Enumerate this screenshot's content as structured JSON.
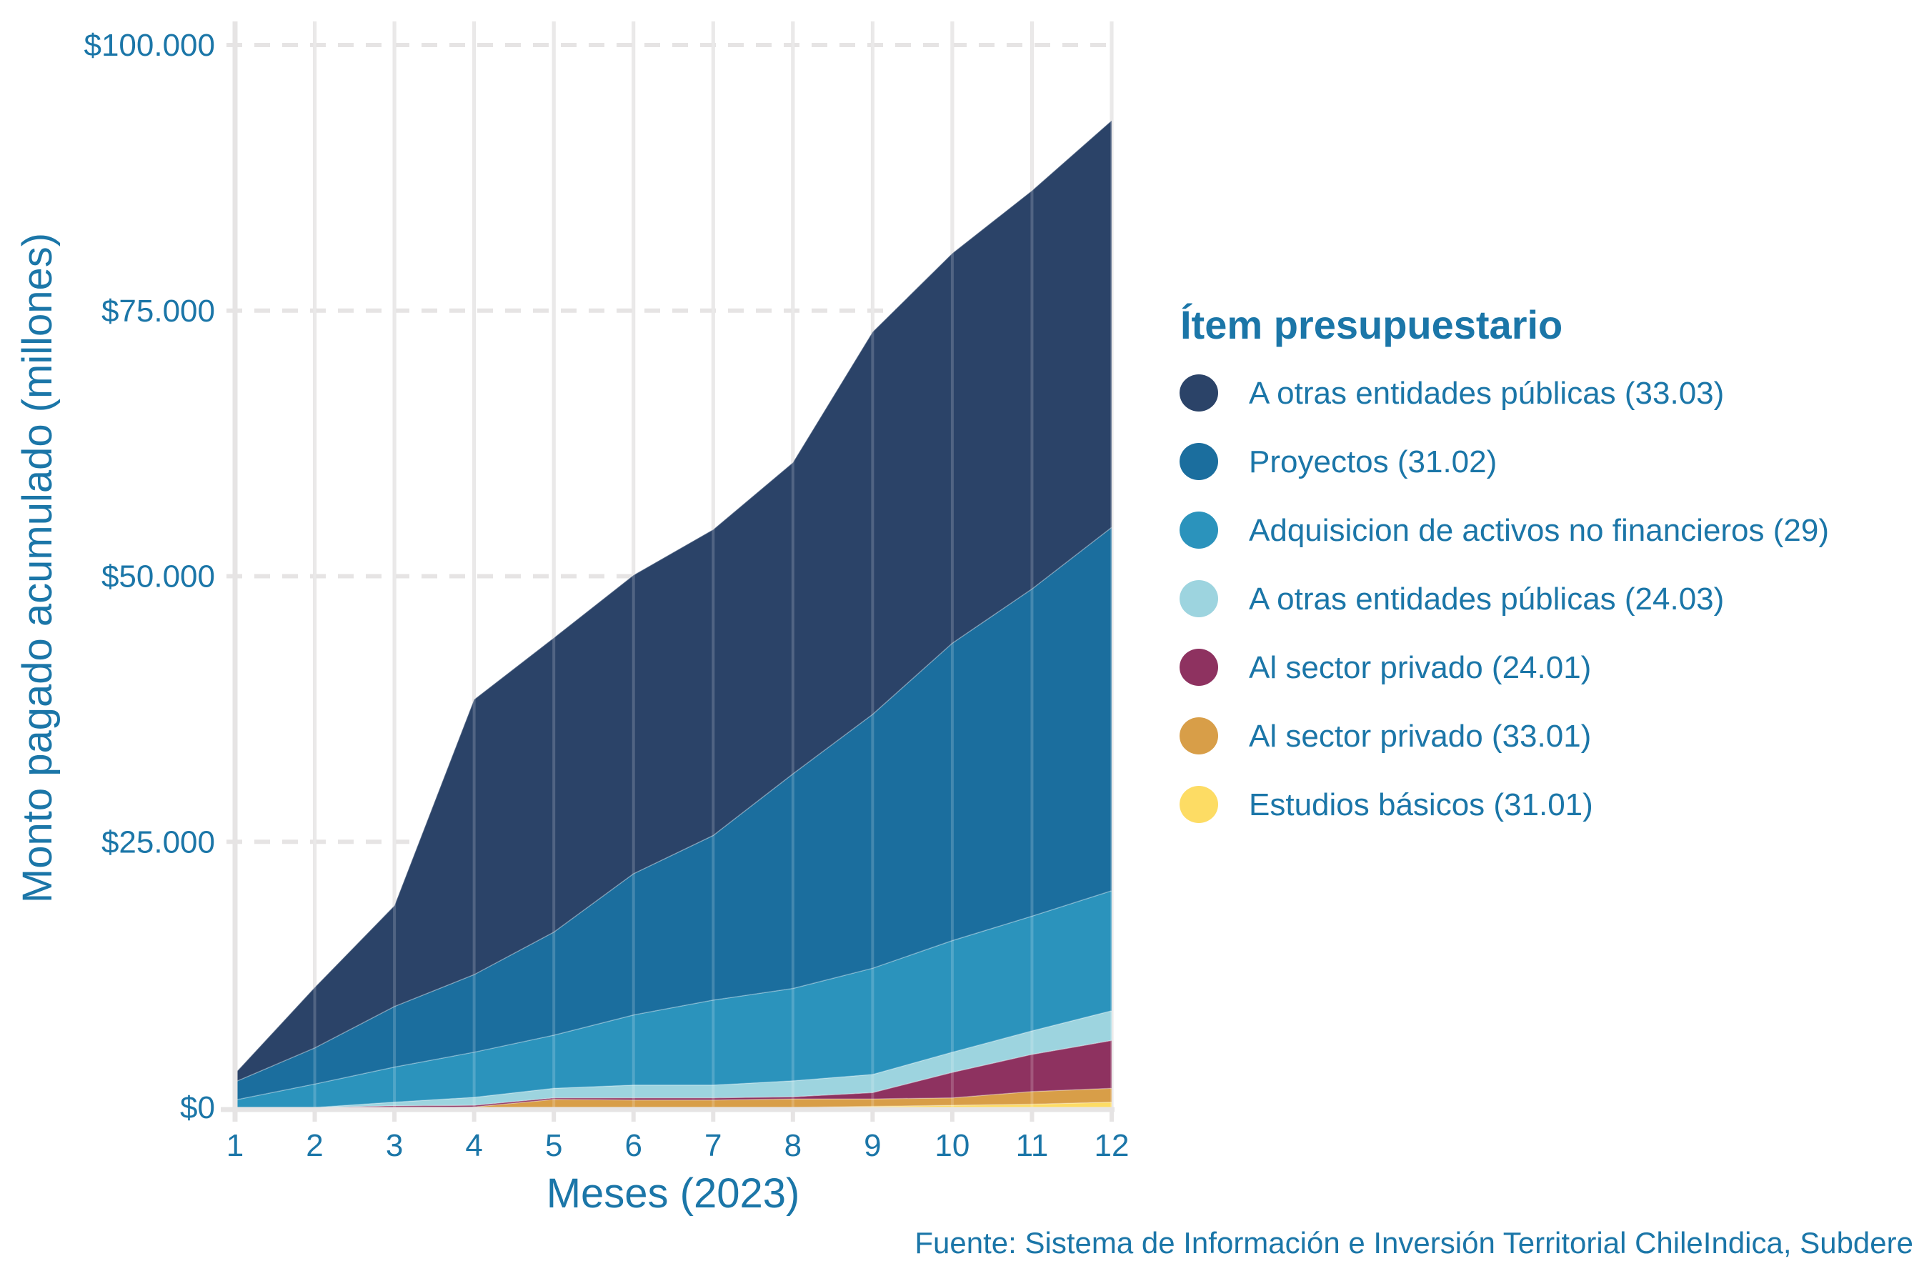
{
  "chart_data": {
    "type": "area",
    "stacked": true,
    "title": "",
    "xlabel": "Meses (2023)",
    "ylabel": "Monto pagado acumulado (millones)",
    "caption": "Fuente: Sistema de Información e Inversión Territorial ChileIndica, Subdere",
    "x": [
      1,
      2,
      3,
      4,
      5,
      6,
      7,
      8,
      9,
      10,
      11,
      12
    ],
    "x_tick_labels": [
      "1",
      "2",
      "3",
      "4",
      "5",
      "6",
      "7",
      "8",
      "9",
      "10",
      "11",
      "12"
    ],
    "xlim": [
      1,
      12
    ],
    "ylim": [
      0,
      100000
    ],
    "y_ticks": [
      0,
      25000,
      50000,
      75000,
      100000
    ],
    "y_tick_labels": [
      "$0",
      "$25.000",
      "$50.000",
      "$75.000",
      "$100.000"
    ],
    "grid": true,
    "legend": {
      "title": "Ítem presupuestario",
      "placement": "right"
    },
    "series": [
      {
        "name": "A otras entidades públicas (33.03)",
        "color": "#2b4368",
        "values": [
          800,
          5700,
          9500,
          25900,
          27700,
          28100,
          28800,
          29300,
          36000,
          36700,
          37500,
          38300
        ]
      },
      {
        "name": "Proyectos (31.02)",
        "color": "#1b6e9e",
        "values": [
          1700,
          3400,
          5700,
          7300,
          9700,
          13300,
          15500,
          20200,
          23900,
          28000,
          30800,
          34200
        ]
      },
      {
        "name": "Adquisicion de activos no financieros (29)",
        "color": "#2b93bc",
        "values": [
          700,
          2200,
          3300,
          4250,
          5000,
          6600,
          8000,
          8700,
          10000,
          10500,
          10800,
          11300
        ]
      },
      {
        "name": "A otras entidades públicas (24.03)",
        "color": "#9dd4df",
        "values": [
          0,
          0,
          350,
          750,
          900,
          1200,
          1200,
          1500,
          1700,
          1900,
          2200,
          2800
        ]
      },
      {
        "name": "Al sector privado (24.01)",
        "color": "#8e3260",
        "values": [
          0,
          0,
          150,
          150,
          150,
          200,
          200,
          200,
          600,
          2400,
          3500,
          4500
        ]
      },
      {
        "name": "Al sector privado (33.01)",
        "color": "#d89e48",
        "values": [
          0,
          0,
          0,
          50,
          750,
          700,
          700,
          800,
          700,
          700,
          1200,
          1300
        ]
      },
      {
        "name": "Estudios básicos (31.01)",
        "color": "#fddc64",
        "values": [
          0,
          0,
          0,
          0,
          0,
          0,
          0,
          0,
          100,
          200,
          300,
          500
        ]
      }
    ]
  },
  "colors": {
    "text": "#1b76a8",
    "grid": "#e6e4e4"
  }
}
